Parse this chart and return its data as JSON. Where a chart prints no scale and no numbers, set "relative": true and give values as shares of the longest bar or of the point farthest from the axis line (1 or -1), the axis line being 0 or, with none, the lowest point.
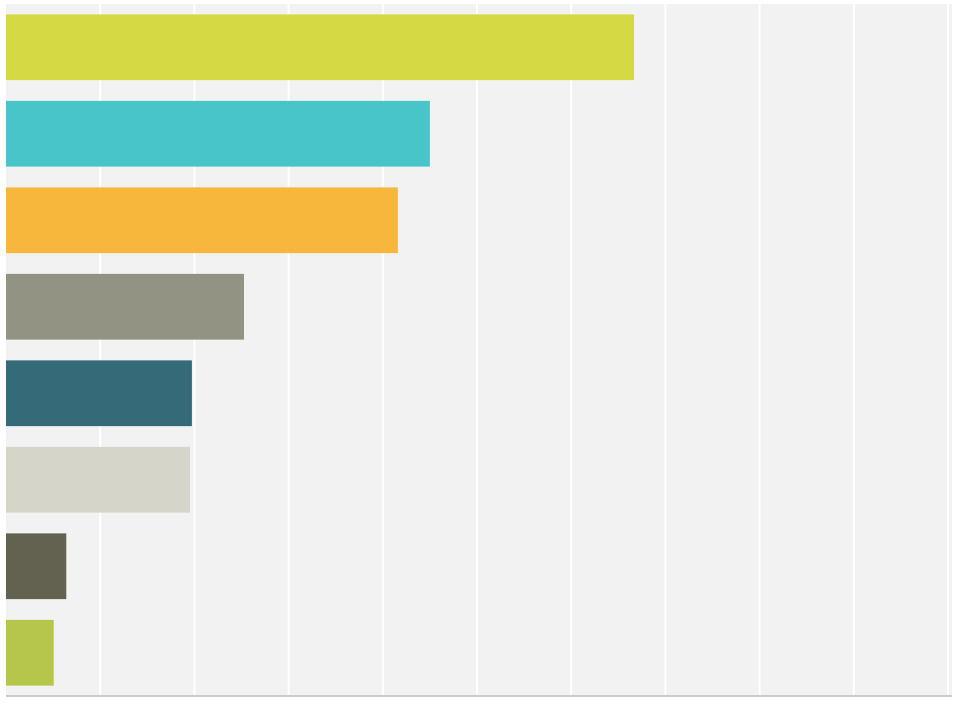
{
  "chart_data": {
    "type": "bar",
    "orientation": "horizontal",
    "relative": true,
    "grid": "x",
    "categories": [
      null,
      null,
      null,
      null,
      null,
      null,
      null,
      null
    ],
    "values": [
      1,
      0.675,
      0.624,
      0.379,
      0.296,
      0.293,
      0.096,
      0.076
    ],
    "colors": [
      "#d4d944",
      "#47c5c8",
      "#f7b63c",
      "#939383",
      "#356a78",
      "#d6d5c9",
      "#636150",
      "#b5c64a"
    ]
  }
}
